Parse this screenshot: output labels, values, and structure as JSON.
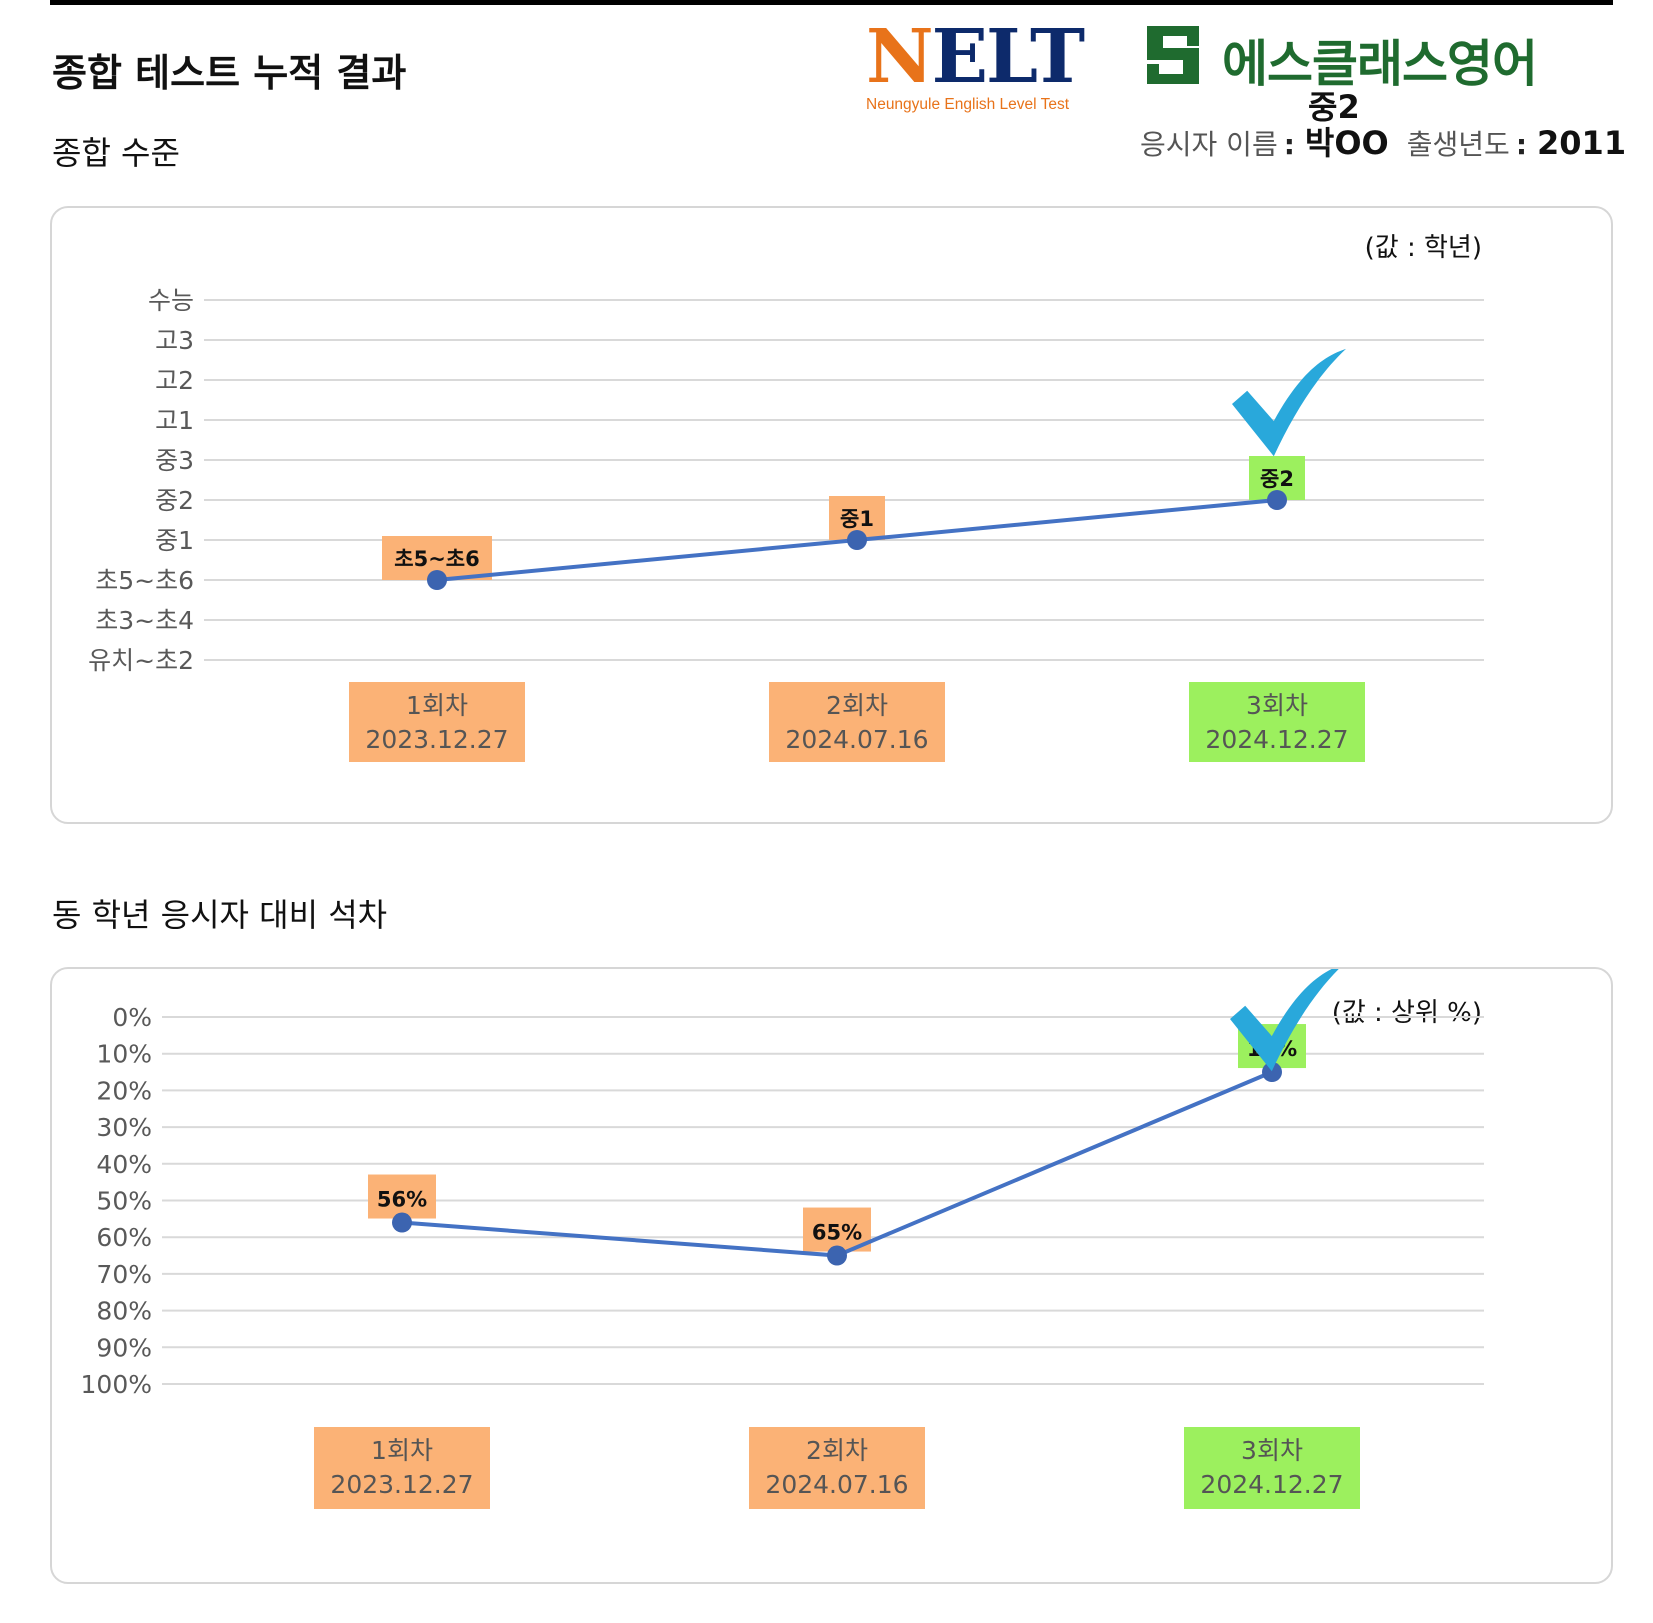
{
  "header": {
    "title": "종합 테스트 누적 결과",
    "logo_nelt": {
      "letters": "NELT",
      "first_letter": "N",
      "rest_letters": "ELT",
      "tagline": "Neungyule English Level Test"
    },
    "logo_sclass": "에스클래스영어",
    "grade": "중2",
    "name_label": "응시자 이름",
    "name_value": "박OO",
    "birth_label": "출생년도",
    "birth_value": "2011",
    "colon": ":"
  },
  "sections": {
    "level_title": "종합 수준",
    "rank_title": "동 학년 응시자 대비 석차"
  },
  "colors": {
    "line": "#4472c4",
    "marker": "#3c64b0",
    "label_orange": "#fbb276",
    "label_green": "#9cf05e",
    "check": "#29a8db",
    "grid": "#d9d9d9",
    "axis_text": "#595959"
  },
  "chart_data": [
    {
      "type": "line",
      "unit_note": "(값 : 학년)",
      "y_categories": [
        "유치~초2",
        "초3~초4",
        "초5~초6",
        "중1",
        "중2",
        "중3",
        "고1",
        "고2",
        "고3",
        "수능"
      ],
      "x_sessions": [
        {
          "label": "1회차",
          "date": "2023.12.27",
          "value": "초5~초6",
          "highlight": false
        },
        {
          "label": "2회차",
          "date": "2024.07.16",
          "value": "중1",
          "highlight": false
        },
        {
          "label": "3회차",
          "date": "2024.12.27",
          "value": "중2",
          "highlight": true
        }
      ],
      "grid": true,
      "legend": "none"
    },
    {
      "type": "line",
      "unit_note": "(값 : 상위 %)",
      "y_ticks": [
        "0%",
        "10%",
        "20%",
        "30%",
        "40%",
        "50%",
        "60%",
        "70%",
        "80%",
        "90%",
        "100%"
      ],
      "ylim": [
        0,
        100
      ],
      "y_reversed": true,
      "x_sessions": [
        {
          "label": "1회차",
          "date": "2023.12.27",
          "value": 56,
          "value_label": "56%",
          "highlight": false
        },
        {
          "label": "2회차",
          "date": "2024.07.16",
          "value": 65,
          "value_label": "65%",
          "highlight": false
        },
        {
          "label": "3회차",
          "date": "2024.12.27",
          "value": 15,
          "value_label": "15%",
          "highlight": true
        }
      ],
      "grid": true,
      "legend": "none"
    }
  ]
}
